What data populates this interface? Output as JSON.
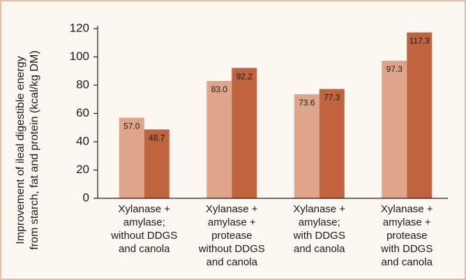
{
  "chart_data": {
    "type": "bar",
    "ylabel": [
      "Improvement of ileal digestible energy",
      "from starch, fat and protein (kcal/kg DM)"
    ],
    "categories": [
      [
        "Xylanase +",
        "amylase;",
        "without DDGS",
        "and canola"
      ],
      [
        "Xylanase +",
        "amylase +",
        "protease",
        "without DDGS",
        "and canola"
      ],
      [
        "Xylanase +",
        "amylase;",
        "with DDGS",
        "and canola"
      ],
      [
        "Xylanase +",
        "amylase +",
        "protease",
        "with DDGS",
        "and canola"
      ]
    ],
    "series": [
      {
        "color": "#dea58a",
        "values": [
          57,
          83,
          73.6,
          97.3
        ],
        "value_labels": [
          "57.0",
          "83.0",
          "73.6",
          "97.3"
        ]
      },
      {
        "color": "#c0633f",
        "values": [
          48.7,
          92.2,
          77.3,
          117.3
        ],
        "value_labels": [
          "48.7",
          "92.2",
          "77.3",
          "117.3"
        ]
      }
    ],
    "ylim": [
      0,
      120
    ],
    "yticks": [
      0,
      20,
      40,
      60,
      80,
      100,
      120
    ],
    "grid": false
  }
}
